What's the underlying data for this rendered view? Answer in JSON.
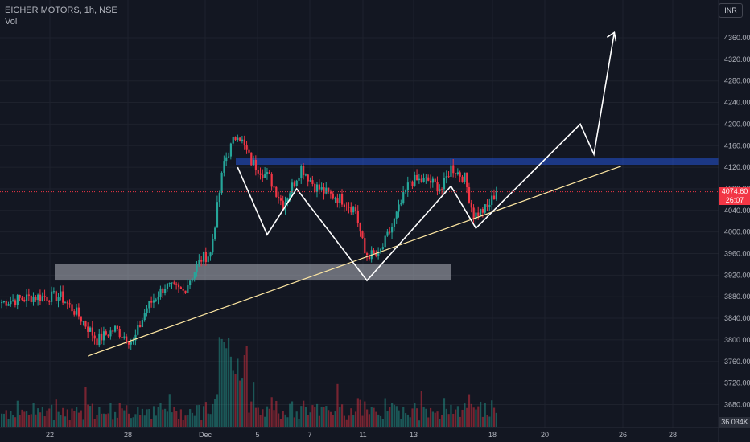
{
  "legend": {
    "symbol": "EICHER MOTORS, 1h, NSE",
    "volume_label": "Vol"
  },
  "currency_button": "INR",
  "last_price": {
    "value": "4074.60",
    "countdown": "26:07"
  },
  "volume_last": "36.034K",
  "colors": {
    "background": "#131722",
    "up": "#26a69a",
    "down": "#f23645",
    "resistance_zone": "#2962ff",
    "support_zone": "#b2b5be",
    "trendline": "#ffe8a3",
    "drawing": "#ffffff",
    "axis_text": "#b2b5be"
  },
  "chart_data": {
    "type": "candlestick",
    "ylim": [
      3650,
      4390
    ],
    "y_ticks": [
      4360,
      4320,
      4280,
      4240,
      4200,
      4160,
      4120,
      4080,
      4040,
      4000,
      3960,
      3920,
      3880,
      3840,
      3800,
      3760,
      3720,
      3680
    ],
    "x_ticks": [
      "22",
      "28",
      "Dec",
      "5",
      "7",
      "11",
      "13",
      "18",
      "20",
      "26",
      "28"
    ],
    "anchor_points": [
      {
        "bar": 0,
        "price": 3870
      },
      {
        "bar": 14,
        "price": 3880
      },
      {
        "bar": 26,
        "price": 3880
      },
      {
        "bar": 34,
        "price": 3845
      },
      {
        "bar": 42,
        "price": 3800
      },
      {
        "bar": 50,
        "price": 3820
      },
      {
        "bar": 58,
        "price": 3795
      },
      {
        "bar": 64,
        "price": 3860
      },
      {
        "bar": 72,
        "price": 3900
      },
      {
        "bar": 80,
        "price": 3890
      },
      {
        "bar": 88,
        "price": 3950
      },
      {
        "bar": 92,
        "price": 3960
      },
      {
        "bar": 98,
        "price": 4130
      },
      {
        "bar": 104,
        "price": 4185
      },
      {
        "bar": 110,
        "price": 4130
      },
      {
        "bar": 118,
        "price": 4100
      },
      {
        "bar": 124,
        "price": 4050
      },
      {
        "bar": 132,
        "price": 4120
      },
      {
        "bar": 138,
        "price": 4085
      },
      {
        "bar": 144,
        "price": 4070
      },
      {
        "bar": 150,
        "price": 4060
      },
      {
        "bar": 156,
        "price": 4040
      },
      {
        "bar": 160,
        "price": 3960
      },
      {
        "bar": 166,
        "price": 3955
      },
      {
        "bar": 172,
        "price": 4010
      },
      {
        "bar": 180,
        "price": 4095
      },
      {
        "bar": 188,
        "price": 4095
      },
      {
        "bar": 194,
        "price": 4080
      },
      {
        "bar": 198,
        "price": 4120
      },
      {
        "bar": 204,
        "price": 4100
      },
      {
        "bar": 208,
        "price": 4030
      },
      {
        "bar": 214,
        "price": 4045
      },
      {
        "bar": 218,
        "price": 4075
      }
    ],
    "last_close": 4074.6,
    "annotations": {
      "resistance_zone": {
        "low": 4130,
        "high": 4135
      },
      "support_zone": {
        "low": 3910,
        "high": 3940
      },
      "trendline": [
        {
          "bar": 38,
          "price": 3770
        },
        {
          "bar": 273,
          "price": 4122
        }
      ],
      "pattern_path": [
        {
          "bar": 104,
          "price": 4120
        },
        {
          "bar": 117,
          "price": 3995
        },
        {
          "bar": 130,
          "price": 4080
        },
        {
          "bar": 161,
          "price": 3910
        },
        {
          "bar": 198,
          "price": 4085
        },
        {
          "bar": 209,
          "price": 4007
        },
        {
          "bar": 255,
          "price": 4200
        },
        {
          "bar": 261,
          "price": 4144
        },
        {
          "bar": 270,
          "price": 4370
        }
      ]
    },
    "volume": {
      "max": "36.034K"
    }
  }
}
